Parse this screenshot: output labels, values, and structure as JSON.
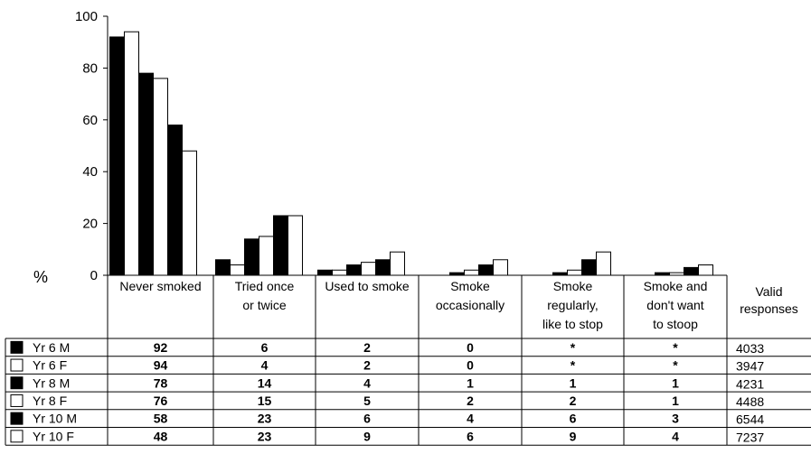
{
  "chart_data": {
    "type": "bar",
    "y_unit_label": "%",
    "ylim": [
      0,
      100
    ],
    "yticks": [
      "0",
      "20",
      "40",
      "60",
      "80",
      "100"
    ],
    "grid": false,
    "categories": [
      [
        "Never smoked"
      ],
      [
        "Tried once",
        "or twice"
      ],
      [
        "Used to smoke"
      ],
      [
        "Smoke",
        "occasionally"
      ],
      [
        "Smoke",
        "regularly,",
        "like to stop"
      ],
      [
        "Smoke and",
        "don't want",
        "to stoop"
      ]
    ],
    "valid_header": [
      "Valid",
      "responses"
    ],
    "series": [
      {
        "name": "Yr 6 M",
        "fill": "#000000",
        "values": [
          92,
          6,
          2,
          0,
          0,
          0
        ],
        "table": [
          "92",
          "6",
          "2",
          "0",
          "*",
          "*"
        ],
        "valid": "4033"
      },
      {
        "name": "Yr 6 F",
        "fill": "#ffffff",
        "values": [
          94,
          4,
          2,
          0,
          0,
          0
        ],
        "table": [
          "94",
          "4",
          "2",
          "0",
          "*",
          "*"
        ],
        "valid": "3947"
      },
      {
        "name": "Yr 8 M",
        "fill": "#000000",
        "values": [
          78,
          14,
          4,
          1,
          1,
          1
        ],
        "table": [
          "78",
          "14",
          "4",
          "1",
          "1",
          "1"
        ],
        "valid": "4231"
      },
      {
        "name": "Yr 8 F",
        "fill": "#ffffff",
        "values": [
          76,
          15,
          5,
          2,
          2,
          1
        ],
        "table": [
          "76",
          "15",
          "5",
          "2",
          "2",
          "1"
        ],
        "valid": "4488"
      },
      {
        "name": "Yr 10 M",
        "fill": "#000000",
        "values": [
          58,
          23,
          6,
          4,
          6,
          3
        ],
        "table": [
          "58",
          "23",
          "6",
          "4",
          "6",
          "3"
        ],
        "valid": "6544"
      },
      {
        "name": "Yr 10 F",
        "fill": "#ffffff",
        "values": [
          48,
          23,
          9,
          6,
          9,
          4
        ],
        "table": [
          "48",
          "23",
          "9",
          "6",
          "9",
          "4"
        ],
        "valid": "7237"
      }
    ]
  }
}
